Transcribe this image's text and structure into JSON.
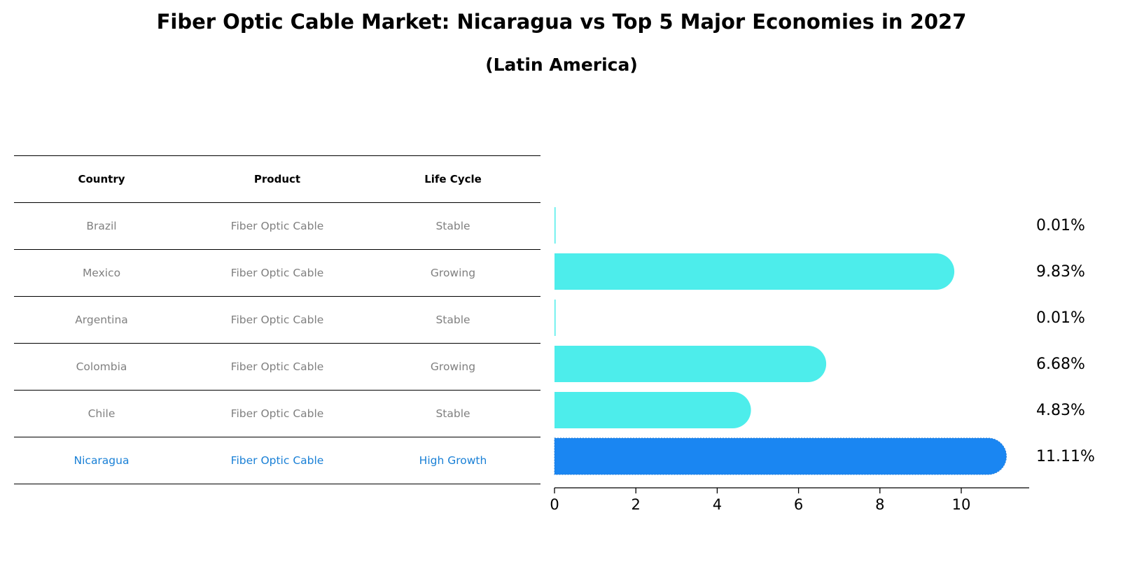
{
  "title": "Fiber Optic Cable Market: Nicaragua vs Top 5 Major Economies in 2027",
  "subtitle": "(Latin America)",
  "table": {
    "headers": [
      "Country",
      "Product",
      "Life Cycle"
    ],
    "rows": [
      {
        "country": "Brazil",
        "product": "Fiber Optic Cable",
        "life_cycle": "Stable"
      },
      {
        "country": "Mexico",
        "product": "Fiber Optic Cable",
        "life_cycle": "Growing"
      },
      {
        "country": "Argentina",
        "product": "Fiber Optic Cable",
        "life_cycle": "Stable"
      },
      {
        "country": "Colombia",
        "product": "Fiber Optic Cable",
        "life_cycle": "Growing"
      },
      {
        "country": "Chile",
        "product": "Fiber Optic Cable",
        "life_cycle": "Stable"
      },
      {
        "country": "Nicaragua",
        "product": "Fiber Optic Cable",
        "life_cycle": "High Growth"
      }
    ]
  },
  "colors": {
    "bar": "#4dedeb",
    "highlight": "#1a86f2",
    "highlight_text": "#1a80d6",
    "muted_text": "#808080"
  },
  "chart_data": {
    "type": "bar",
    "orientation": "horizontal",
    "categories": [
      "Brazil",
      "Mexico",
      "Argentina",
      "Colombia",
      "Chile",
      "Nicaragua"
    ],
    "values": [
      0.01,
      9.83,
      0.01,
      6.68,
      4.83,
      11.11
    ],
    "value_labels": [
      "0.01%",
      "9.83%",
      "0.01%",
      "6.68%",
      "4.83%",
      "11.11%"
    ],
    "highlight_category": "Nicaragua",
    "xlim": [
      0,
      11.67
    ],
    "xticks": [
      0,
      2,
      4,
      6,
      8,
      10
    ],
    "xtick_labels": [
      "0",
      "2",
      "4",
      "6",
      "8",
      "10"
    ],
    "xlabel": "",
    "ylabel": "",
    "grid": false
  }
}
